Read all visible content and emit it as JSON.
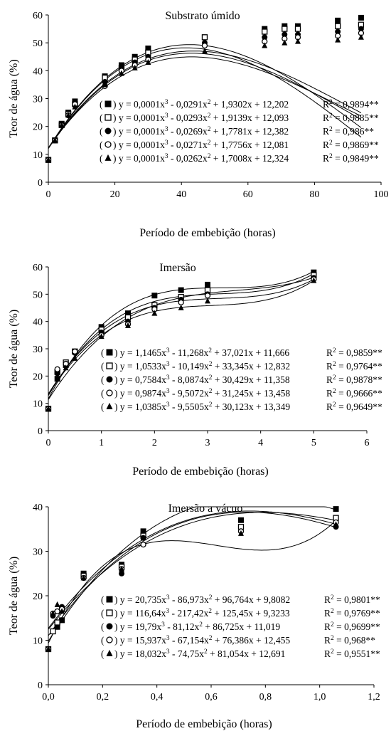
{
  "chart_data": [
    {
      "type": "scatter",
      "title": "Substrato úmido",
      "xlabel": "Período de embebição (horas)",
      "ylabel": "Teor de água (%)",
      "xlim": [
        0,
        100
      ],
      "ylim": [
        0,
        60
      ],
      "xticks": [
        "0",
        "20",
        "40",
        "60",
        "80",
        "100"
      ],
      "yticks": [
        "0",
        "10",
        "20",
        "30",
        "40",
        "50",
        "60"
      ],
      "x": [
        0,
        2,
        4,
        6,
        8,
        17,
        22,
        26,
        30,
        47,
        65,
        71,
        75,
        87,
        94
      ],
      "series": [
        {
          "marker": "filled-square",
          "equation": "y = 0,0001x³ - 0,0291x² + 1,9302x + 12,202",
          "r2": "R² = 0,9894**",
          "coef": [
            0.0001,
            -0.0291,
            1.9302,
            12.202
          ],
          "values": [
            8,
            15,
            21,
            25,
            29,
            38,
            42,
            45,
            48,
            52,
            55,
            56,
            56,
            58,
            59
          ]
        },
        {
          "marker": "open-square",
          "equation": "y = 0,0001x³ - 0,0293x² + 1,9139x + 12,093",
          "r2": "R² = 0,9885**",
          "coef": [
            0.0001,
            -0.0293,
            1.9139,
            12.093
          ],
          "values": [
            8,
            15,
            20.5,
            24.5,
            28,
            37.5,
            41,
            44,
            46.5,
            52,
            54,
            55,
            55,
            56,
            56.5
          ]
        },
        {
          "marker": "filled-circle",
          "equation": "y = 0,0001x³ - 0,0269x² + 1,7781x + 12,382",
          "r2": "R² = 0,986**",
          "coef": [
            0.0001,
            -0.0269,
            1.7781,
            12.382
          ],
          "values": [
            8,
            15,
            20.5,
            24,
            28,
            36,
            41,
            43,
            45,
            50,
            52,
            53,
            53,
            54,
            55
          ]
        },
        {
          "marker": "open-circle",
          "equation": "y = 0,0001x³ - 0,0271x² + 1,7756x + 12,081",
          "r2": "R² = 0,9869**",
          "coef": [
            0.0001,
            -0.0271,
            1.7756,
            12.081
          ],
          "values": [
            8,
            15,
            20.5,
            24,
            28,
            34.5,
            40,
            42,
            44,
            49,
            50.5,
            51.5,
            52,
            52.5,
            53.5
          ]
        },
        {
          "marker": "filled-triangle",
          "equation": "y = 0,0001x³ - 0,0262x² + 1,7008x + 12,324",
          "r2": "R² = 0,9849**",
          "coef": [
            0.0001,
            -0.0262,
            1.7008,
            12.324
          ],
          "values": [
            8,
            15,
            20.5,
            24,
            27,
            35,
            39,
            41,
            43,
            47,
            49,
            50,
            50.5,
            51,
            52
          ]
        }
      ]
    },
    {
      "type": "scatter",
      "title": "Imersão",
      "xlabel": "Período de  embebição (horas)",
      "ylabel": "Teor de água (%)",
      "xlim": [
        0,
        6
      ],
      "ylim": [
        0,
        60
      ],
      "xticks": [
        "0",
        "1",
        "2",
        "3",
        "4",
        "5",
        "6"
      ],
      "yticks": [
        "0",
        "10",
        "20",
        "30",
        "40",
        "50",
        "60"
      ],
      "x": [
        0,
        0.17,
        0.33,
        0.5,
        1,
        1.5,
        2,
        2.5,
        3,
        5
      ],
      "series": [
        {
          "marker": "filled-square",
          "equation": "y = 1,1465x³  - 11,268x² + 37,021x + 11,666",
          "r2": "R² = 0,9859**",
          "coef": [
            1.1465,
            -11.268,
            37.021,
            11.666
          ],
          "values": [
            8,
            19,
            24,
            29,
            38,
            43,
            49.5,
            51.5,
            53.5,
            58
          ]
        },
        {
          "marker": "open-square",
          "equation": "y = 1,0533x³  - 10,149x² + 33,345x + 12,832",
          "r2": "R² = 0,9764**",
          "coef": [
            1.0533,
            -10.149,
            33.345,
            12.832
          ],
          "values": [
            8,
            21.5,
            25,
            29,
            37,
            41.5,
            46,
            49,
            51.5,
            57
          ]
        },
        {
          "marker": "filled-circle",
          "equation": "y = 0,7584x³  - 8,0874x² + 30,429x + 11,358",
          "r2": "R² = 0,9878**",
          "coef": [
            0.7584,
            -8.0874,
            30.429,
            11.358
          ],
          "values": [
            8,
            21,
            24.5,
            28.5,
            36,
            40,
            45,
            48,
            50,
            56
          ]
        },
        {
          "marker": "open-circle",
          "equation": "y = 0,9874x³  - 9,5072x² + 31,245x + 13,458",
          "r2": "R² = 0,9666**",
          "coef": [
            0.9874,
            -9.5072,
            31.245,
            13.458
          ],
          "values": [
            8,
            22.5,
            24.5,
            29,
            35,
            39,
            44.5,
            47,
            49.5,
            55.5
          ]
        },
        {
          "marker": "filled-triangle",
          "equation": "y = 1,0385x³  - 9,5505x² + 30,123x + 13,349",
          "r2": "R² = 0,9649**",
          "coef": [
            1.0385,
            -9.5505,
            30.123,
            13.349
          ],
          "values": [
            8,
            19,
            23,
            26.5,
            34.5,
            38.5,
            43,
            45,
            47.5,
            55
          ]
        }
      ]
    },
    {
      "type": "scatter",
      "title": "Imersão a vácuo",
      "xlabel": "Período de embebição (horas)",
      "ylabel": "Teor de água (%)",
      "xlim": [
        0,
        1.2
      ],
      "ylim": [
        0,
        40
      ],
      "xticks": [
        "0,0",
        "0,2",
        "0,4",
        "0,6",
        "0,8",
        "1,0",
        "1,2"
      ],
      "yticks": [
        "0",
        "10",
        "20",
        "30",
        "40"
      ],
      "x": [
        0,
        0.017,
        0.033,
        0.05,
        0.13,
        0.27,
        0.35,
        0.71,
        1.06
      ],
      "series": [
        {
          "marker": "filled-square",
          "equation": "y = 20,735x³  - 86,973x² + 96,764x + 9,8082",
          "r2": "R² = 0,9801**",
          "coef": [
            20.735,
            -86.973,
            96.764,
            9.8082
          ],
          "values": [
            8,
            12,
            13,
            14.5,
            25,
            27,
            34.5,
            37,
            39.5
          ]
        },
        {
          "marker": "open-square",
          "equation": "y = 116,64x³  - 217,42x² + 125,45x + 9,3233",
          "r2": "R² = 0,9769**",
          "coef": [
            116.64,
            -217.42,
            125.45,
            9.3233
          ],
          "values": [
            8,
            12,
            14,
            17,
            24.5,
            26.5,
            33.5,
            35.5,
            37.5
          ]
        },
        {
          "marker": "filled-circle",
          "equation": "y = 19,79x³  - 81,12x² + 86,725x + 11,019",
          "r2": "R² = 0,9699**",
          "coef": [
            19.79,
            -81.12,
            86.725,
            11.019
          ],
          "values": [
            8,
            15.5,
            16.5,
            17.5,
            24,
            25,
            33,
            34.5,
            35.5
          ]
        },
        {
          "marker": "open-circle",
          "equation": "y = 15,937x³  - 67,154x² + 76,386x + 12,455",
          "r2": "R² = 0,968**",
          "coef": [
            15.937,
            -67.154,
            76.386,
            12.455
          ],
          "values": [
            8,
            16,
            16.5,
            17,
            24,
            26,
            31.5,
            34.5,
            36.5
          ]
        },
        {
          "marker": "filled-triangle",
          "equation": "y = 18,032x³  - 74,75x² + 81,054x + 12,691",
          "r2": "R² = 0,9551**",
          "coef": [
            18.032,
            -74.75,
            81.054,
            12.691
          ],
          "values": [
            8,
            16,
            18,
            16.5,
            24,
            26,
            33,
            34,
            36
          ]
        }
      ]
    }
  ]
}
